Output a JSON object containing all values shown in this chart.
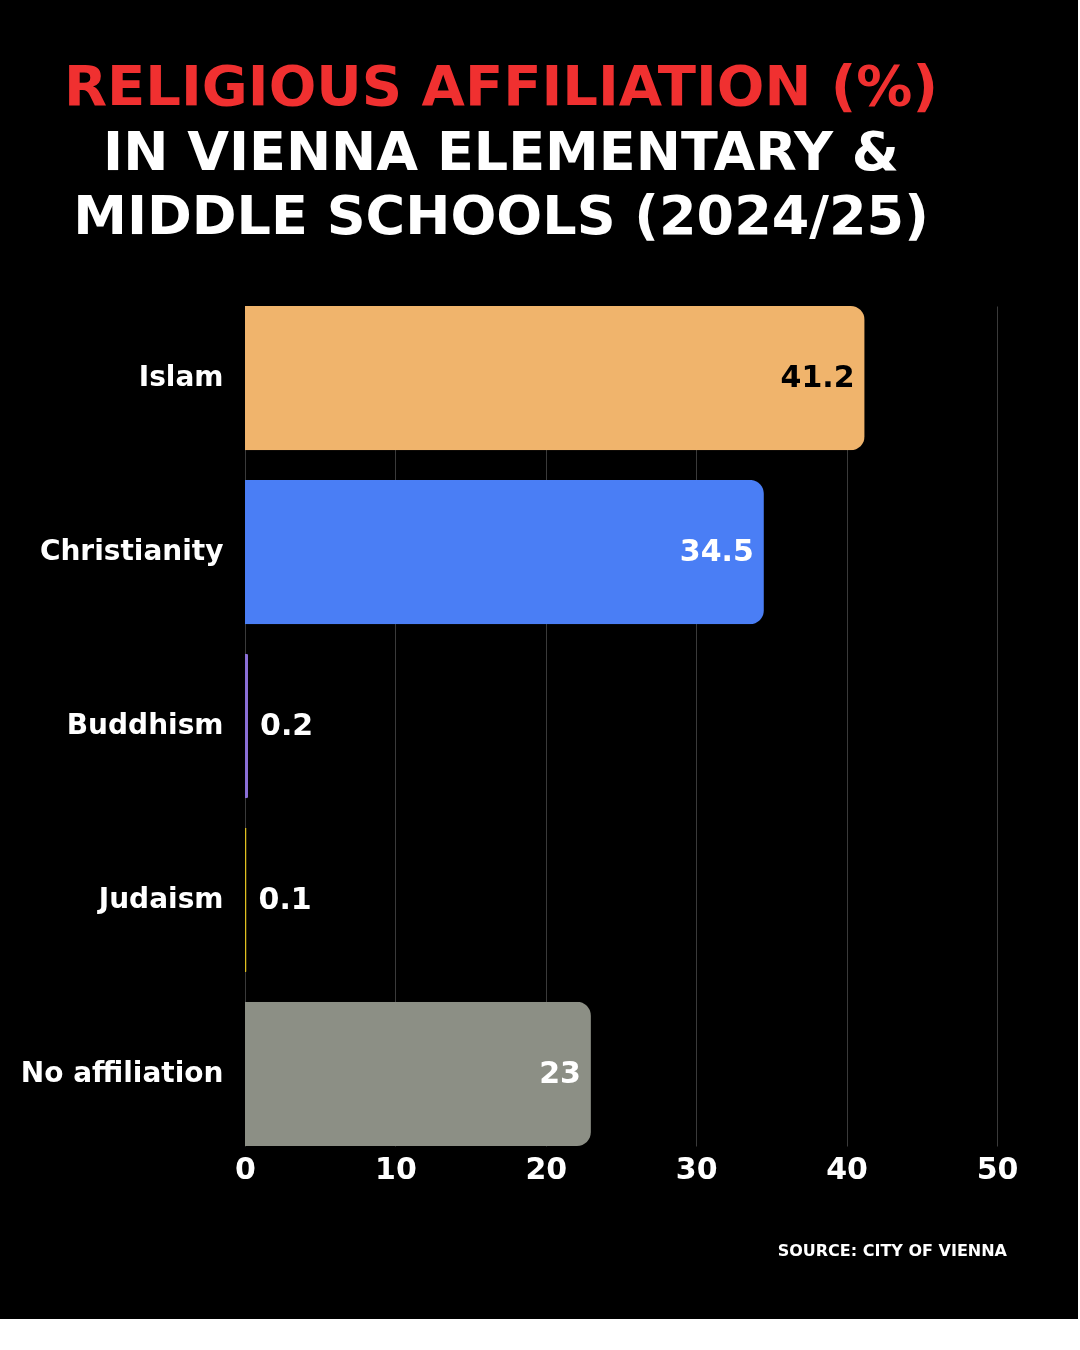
{
  "chart_data": {
    "type": "bar",
    "orientation": "horizontal",
    "title": "RELIGIOUS AFFILIATION (%)",
    "subtitle": "IN VIENNA ELEMENTARY & MIDDLE SCHOOLS (2024/25)",
    "categories": [
      "Islam",
      "Christianity",
      "Buddhism",
      "Judaism",
      "No affiliation"
    ],
    "values": [
      41.2,
      34.5,
      0.2,
      0.1,
      23
    ],
    "colors": [
      "#f0b46c",
      "#4a7ef5",
      "#8a6fd6",
      "#e0c020",
      "#8c8f85"
    ],
    "xlim": [
      0,
      50
    ],
    "xticks": [
      0,
      10,
      20,
      30,
      40,
      50
    ],
    "grid": "x",
    "data_labels": true,
    "annotations": [
      "SOURCE: CITY OF VIENNA"
    ]
  }
}
